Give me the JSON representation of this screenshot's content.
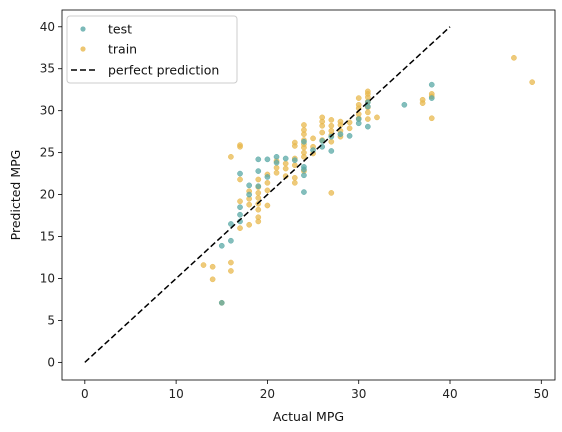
{
  "chart_data": {
    "type": "scatter",
    "xlabel": "Actual MPG",
    "ylabel": "Predicted MPG",
    "xlim": [
      -2.5,
      51.5
    ],
    "ylim": [
      -2.1,
      42
    ],
    "xticks": [
      0,
      10,
      20,
      30,
      40,
      50
    ],
    "yticks": [
      0,
      5,
      10,
      15,
      20,
      25,
      30,
      35,
      40
    ],
    "grid": false,
    "legend_position": "top-left",
    "series": [
      {
        "name": "test",
        "color": "#5aa8a6",
        "marker": "circle",
        "points": [
          [
            15,
            7.1
          ],
          [
            15,
            13.9
          ],
          [
            16,
            14.5
          ],
          [
            16,
            16.5
          ],
          [
            17,
            16.8
          ],
          [
            17,
            17.6
          ],
          [
            17,
            18.5
          ],
          [
            17,
            22.5
          ],
          [
            18,
            20.0
          ],
          [
            18,
            21.1
          ],
          [
            19,
            21.0
          ],
          [
            19,
            22.8
          ],
          [
            19,
            24.2
          ],
          [
            20,
            22.1
          ],
          [
            20,
            24.2
          ],
          [
            21,
            23.8
          ],
          [
            21,
            24.5
          ],
          [
            22,
            24.3
          ],
          [
            23,
            24.1
          ],
          [
            24,
            20.3
          ],
          [
            24,
            22.3
          ],
          [
            24,
            23.0
          ],
          [
            24,
            23.3
          ],
          [
            24,
            26.3
          ],
          [
            25,
            25.3
          ],
          [
            26,
            25.7
          ],
          [
            26,
            26.4
          ],
          [
            27,
            25.2
          ],
          [
            27,
            26.9
          ],
          [
            28,
            27.2
          ],
          [
            29,
            27.0
          ],
          [
            30,
            28.5
          ],
          [
            30,
            29.0
          ],
          [
            31,
            28.1
          ],
          [
            31,
            30.5
          ],
          [
            31,
            31.0
          ],
          [
            35,
            30.7
          ],
          [
            38,
            31.5
          ],
          [
            38,
            33.1
          ]
        ]
      },
      {
        "name": "train",
        "color": "#e8b84d",
        "marker": "circle",
        "points": [
          [
            13,
            11.6
          ],
          [
            14,
            9.9
          ],
          [
            14,
            11.4
          ],
          [
            15,
            7.1
          ],
          [
            16,
            10.9
          ],
          [
            16,
            11.9
          ],
          [
            16,
            24.5
          ],
          [
            17,
            16.0
          ],
          [
            17,
            19.2
          ],
          [
            17,
            21.8
          ],
          [
            17,
            25.7
          ],
          [
            17,
            25.9
          ],
          [
            18,
            16.4
          ],
          [
            18,
            18.8
          ],
          [
            18,
            19.5
          ],
          [
            18,
            20.4
          ],
          [
            19,
            16.8
          ],
          [
            19,
            17.3
          ],
          [
            19,
            18.2
          ],
          [
            19,
            18.9
          ],
          [
            19,
            19.6
          ],
          [
            19,
            20.2
          ],
          [
            19,
            20.9
          ],
          [
            19,
            21.8
          ],
          [
            20,
            18.7
          ],
          [
            20,
            20.5
          ],
          [
            20,
            21.4
          ],
          [
            20,
            22.4
          ],
          [
            21,
            22.6
          ],
          [
            21,
            23.2
          ],
          [
            21,
            24.0
          ],
          [
            22,
            22.2
          ],
          [
            22,
            23.1
          ],
          [
            22,
            23.7
          ],
          [
            23,
            21.4
          ],
          [
            23,
            22.0
          ],
          [
            23,
            23.5
          ],
          [
            23,
            24.3
          ],
          [
            23,
            25.8
          ],
          [
            23,
            26.2
          ],
          [
            24,
            22.8
          ],
          [
            24,
            24.5
          ],
          [
            24,
            25.0
          ],
          [
            24,
            25.6
          ],
          [
            24,
            26.0
          ],
          [
            24,
            26.5
          ],
          [
            24,
            27.2
          ],
          [
            24,
            27.7
          ],
          [
            24,
            28.3
          ],
          [
            25,
            24.9
          ],
          [
            25,
            25.7
          ],
          [
            25,
            26.7
          ],
          [
            26,
            26.5
          ],
          [
            26,
            27.4
          ],
          [
            26,
            28.2
          ],
          [
            26,
            28.7
          ],
          [
            26,
            29.2
          ],
          [
            27,
            20.2
          ],
          [
            27,
            26.3
          ],
          [
            27,
            27.1
          ],
          [
            27,
            27.6
          ],
          [
            27,
            28.2
          ],
          [
            27,
            28.9
          ],
          [
            28,
            26.9
          ],
          [
            28,
            27.6
          ],
          [
            28,
            28.3
          ],
          [
            28,
            28.7
          ],
          [
            29,
            27.9
          ],
          [
            29,
            28.6
          ],
          [
            30,
            29.1
          ],
          [
            30,
            29.6
          ],
          [
            30,
            30.3
          ],
          [
            30,
            30.7
          ],
          [
            30,
            31.5
          ],
          [
            31,
            29.0
          ],
          [
            31,
            29.8
          ],
          [
            31,
            30.4
          ],
          [
            31,
            31.1
          ],
          [
            31,
            31.6
          ],
          [
            31,
            32.0
          ],
          [
            31,
            32.3
          ],
          [
            32,
            29.2
          ],
          [
            37,
            30.9
          ],
          [
            37,
            31.3
          ],
          [
            38,
            29.1
          ],
          [
            38,
            31.7
          ],
          [
            38,
            32.0
          ],
          [
            47,
            36.3
          ],
          [
            49,
            33.4
          ]
        ]
      }
    ],
    "reference_line": {
      "name": "perfect prediction",
      "color": "#000000",
      "style": "dashed",
      "x": [
        0,
        40
      ],
      "y": [
        0,
        40
      ]
    }
  }
}
